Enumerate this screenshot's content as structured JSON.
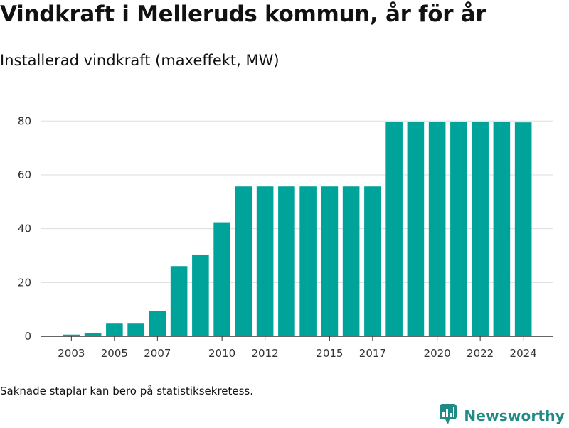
{
  "title": "Vindkraft i Melleruds kommun, år för år",
  "subtitle": "Installerad vindkraft (maxeffekt, MW)",
  "footnote": "Saknade staplar kan bero på statistiksekretess.",
  "brand": {
    "name": "Newsworthy",
    "icon": "newsworthy-logo-icon",
    "color": "#1f8b86"
  },
  "colors": {
    "bar": "#00a39a",
    "grid": "#dddddd",
    "axis": "#333333"
  },
  "chart_data": {
    "type": "bar",
    "title": "Vindkraft i Melleruds kommun, år för år",
    "subtitle": "Installerad vindkraft (maxeffekt, MW)",
    "xlabel": "",
    "ylabel": "",
    "x": [
      2003,
      2004,
      2005,
      2006,
      2007,
      2008,
      2009,
      2010,
      2011,
      2012,
      2013,
      2014,
      2015,
      2016,
      2017,
      2018,
      2019,
      2020,
      2021,
      2022,
      2023,
      2024
    ],
    "values": [
      0.6,
      1.3,
      4.7,
      4.7,
      9.4,
      26.1,
      30.4,
      42.4,
      55.7,
      55.7,
      55.7,
      55.7,
      55.7,
      55.7,
      55.7,
      79.8,
      79.8,
      79.8,
      79.8,
      79.8,
      79.8,
      79.5
    ],
    "x_ticks": [
      2003,
      2005,
      2007,
      2010,
      2012,
      2015,
      2017,
      2020,
      2022,
      2024
    ],
    "y_ticks": [
      0,
      20,
      40,
      60,
      80
    ],
    "ylim": [
      0,
      88
    ],
    "xlim": [
      2001.6,
      2025.4
    ],
    "grid": true,
    "legend": "none"
  }
}
